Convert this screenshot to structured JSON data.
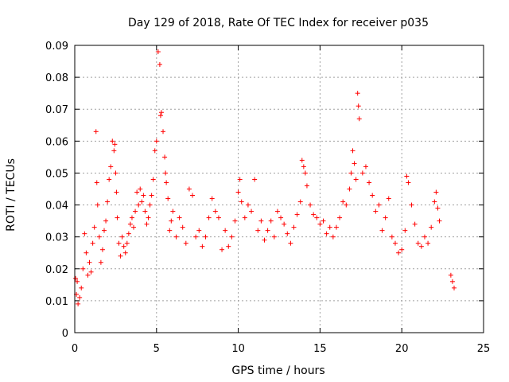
{
  "chart_data": {
    "type": "scatter",
    "title": "Day 129 of 2018, Rate Of TEC Index for receiver p035",
    "xlabel": "GPS time / hours",
    "ylabel": "ROTI / TECUs",
    "xlim": [
      0,
      25
    ],
    "ylim": [
      0,
      0.09
    ],
    "x_ticks": [
      "0",
      "5",
      "10",
      "15",
      "20",
      "25"
    ],
    "y_ticks": [
      "0",
      "0.01",
      "0.02",
      "0.03",
      "0.04",
      "0.05",
      "0.06",
      "0.07",
      "0.08",
      "0.09"
    ],
    "grid": true,
    "marker": "+",
    "series_color": "#ff0000",
    "x": [
      0.05,
      0.1,
      0.15,
      0.2,
      0.3,
      0.4,
      0.5,
      0.6,
      0.7,
      0.8,
      0.9,
      1.0,
      1.1,
      1.2,
      1.3,
      1.35,
      1.4,
      1.5,
      1.6,
      1.7,
      1.8,
      1.9,
      2.0,
      2.1,
      2.2,
      2.3,
      2.4,
      2.45,
      2.5,
      2.55,
      2.6,
      2.7,
      2.8,
      2.9,
      3.0,
      3.1,
      3.2,
      3.3,
      3.4,
      3.5,
      3.6,
      3.7,
      3.8,
      3.9,
      4.0,
      4.1,
      4.2,
      4.3,
      4.4,
      4.5,
      4.6,
      4.7,
      4.8,
      4.9,
      5.0,
      5.1,
      5.2,
      5.25,
      5.3,
      5.4,
      5.5,
      5.55,
      5.6,
      5.7,
      5.8,
      5.9,
      6.0,
      6.2,
      6.4,
      6.6,
      6.8,
      7.0,
      7.2,
      7.4,
      7.6,
      7.8,
      8.0,
      8.2,
      8.4,
      8.6,
      8.8,
      9.0,
      9.2,
      9.4,
      9.6,
      9.8,
      10.0,
      10.1,
      10.2,
      10.4,
      10.6,
      10.8,
      11.0,
      11.2,
      11.4,
      11.6,
      11.8,
      12.0,
      12.2,
      12.4,
      12.6,
      12.8,
      13.0,
      13.2,
      13.4,
      13.6,
      13.8,
      13.9,
      14.0,
      14.1,
      14.2,
      14.4,
      14.6,
      14.8,
      15.0,
      15.2,
      15.4,
      15.6,
      15.8,
      16.0,
      16.2,
      16.4,
      16.6,
      16.8,
      16.9,
      17.0,
      17.1,
      17.2,
      17.3,
      17.35,
      17.4,
      17.6,
      17.8,
      18.0,
      18.2,
      18.4,
      18.6,
      18.8,
      19.0,
      19.2,
      19.4,
      19.6,
      19.8,
      20.0,
      20.2,
      20.3,
      20.4,
      20.6,
      20.8,
      21.0,
      21.2,
      21.4,
      21.6,
      21.8,
      22.0,
      22.1,
      22.2,
      22.3,
      23.0,
      23.1,
      23.2
    ],
    "y": [
      0.017,
      0.012,
      0.016,
      0.009,
      0.011,
      0.014,
      0.02,
      0.031,
      0.025,
      0.018,
      0.022,
      0.019,
      0.028,
      0.033,
      0.063,
      0.047,
      0.04,
      0.03,
      0.022,
      0.026,
      0.032,
      0.035,
      0.041,
      0.048,
      0.052,
      0.06,
      0.057,
      0.059,
      0.05,
      0.044,
      0.036,
      0.028,
      0.024,
      0.03,
      0.027,
      0.025,
      0.028,
      0.031,
      0.034,
      0.036,
      0.033,
      0.038,
      0.044,
      0.04,
      0.045,
      0.041,
      0.043,
      0.038,
      0.034,
      0.036,
      0.04,
      0.043,
      0.048,
      0.057,
      0.06,
      0.088,
      0.084,
      0.068,
      0.069,
      0.063,
      0.055,
      0.05,
      0.047,
      0.042,
      0.032,
      0.035,
      0.038,
      0.03,
      0.036,
      0.033,
      0.028,
      0.045,
      0.043,
      0.03,
      0.032,
      0.027,
      0.03,
      0.036,
      0.042,
      0.038,
      0.036,
      0.026,
      0.032,
      0.027,
      0.03,
      0.035,
      0.044,
      0.048,
      0.041,
      0.036,
      0.04,
      0.038,
      0.048,
      0.032,
      0.035,
      0.029,
      0.032,
      0.035,
      0.03,
      0.038,
      0.036,
      0.034,
      0.031,
      0.028,
      0.033,
      0.037,
      0.041,
      0.054,
      0.052,
      0.05,
      0.046,
      0.04,
      0.037,
      0.036,
      0.034,
      0.035,
      0.031,
      0.033,
      0.03,
      0.033,
      0.036,
      0.041,
      0.04,
      0.045,
      0.05,
      0.057,
      0.053,
      0.048,
      0.075,
      0.071,
      0.067,
      0.05,
      0.052,
      0.047,
      0.043,
      0.038,
      0.04,
      0.032,
      0.036,
      0.042,
      0.03,
      0.028,
      0.025,
      0.026,
      0.032,
      0.049,
      0.047,
      0.04,
      0.034,
      0.028,
      0.027,
      0.03,
      0.028,
      0.033,
      0.041,
      0.044,
      0.039,
      0.035,
      0.018,
      0.016,
      0.014
    ]
  }
}
